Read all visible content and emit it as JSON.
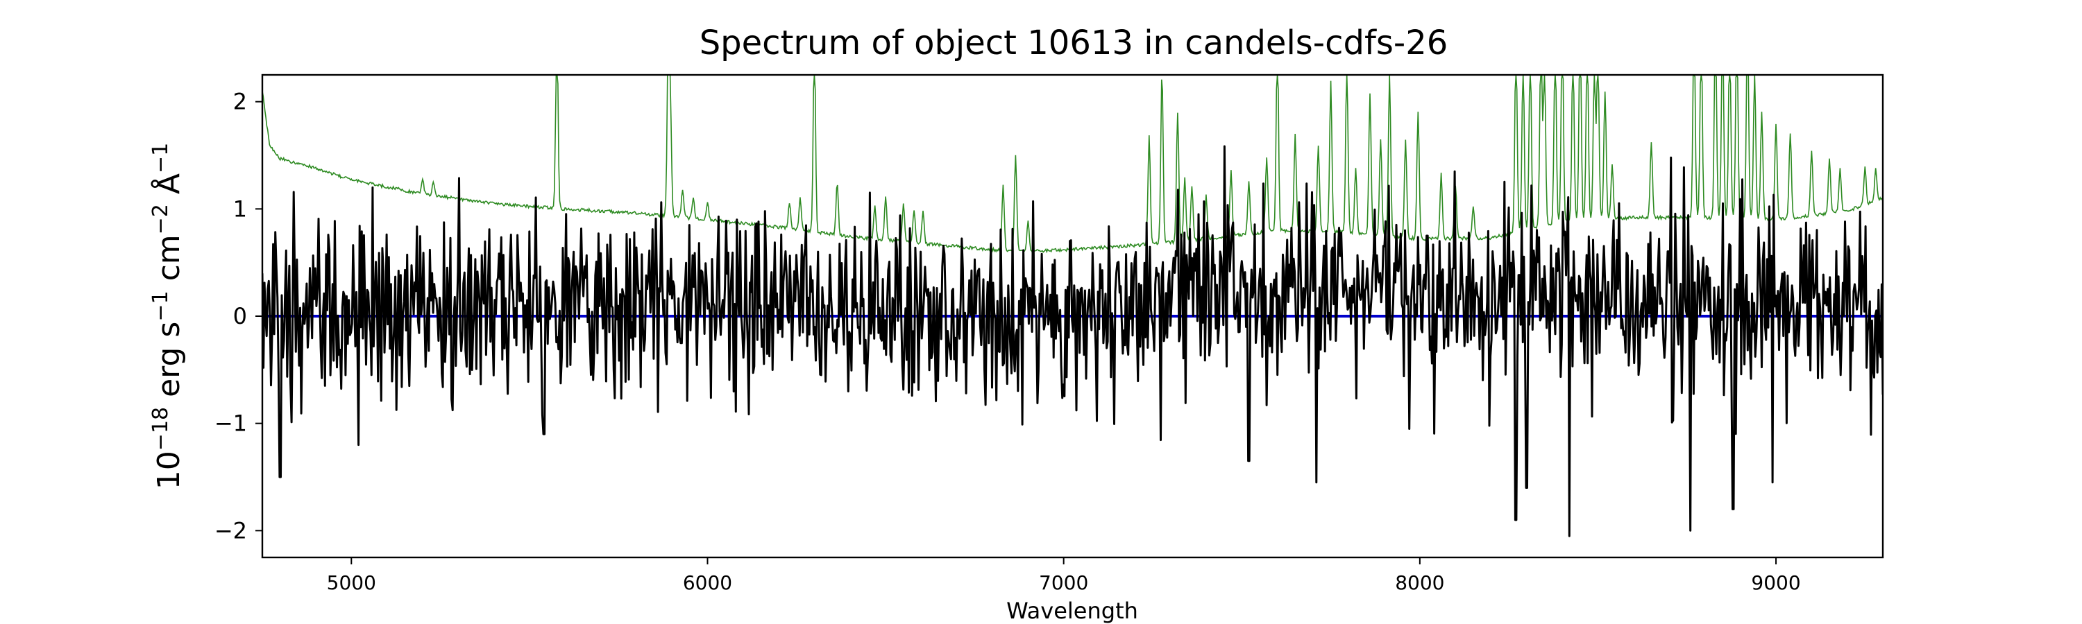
{
  "chart_data": {
    "type": "line",
    "title": "Spectrum of object 10613 in candels-cdfs-26",
    "xlabel": "Wavelength",
    "ylabel_parts": {
      "base": "10",
      "exp": "−18",
      "erg": " erg s",
      "s_exp": "−1",
      "cm": " cm",
      "cm_exp": "−2",
      "ang": " Å",
      "ang_exp": "−1"
    },
    "xlim": [
      4750,
      9300
    ],
    "ylim": [
      -2.25,
      2.25
    ],
    "xticks": [
      5000,
      6000,
      7000,
      8000,
      9000
    ],
    "xtick_labels": [
      "5000",
      "6000",
      "7000",
      "8000",
      "9000"
    ],
    "yticks": [
      -2,
      -1,
      0,
      1,
      2
    ],
    "ytick_labels": [
      "−2",
      "−1",
      "0",
      "1",
      "2"
    ],
    "grid": false,
    "colors": {
      "flux": "#000000",
      "error": "#2e8b22",
      "model": "#0000cc"
    },
    "error_series": {
      "continuum_anchors": [
        [
          4750,
          2.1
        ],
        [
          4770,
          1.6
        ],
        [
          4800,
          1.47
        ],
        [
          4900,
          1.38
        ],
        [
          5000,
          1.27
        ],
        [
          5200,
          1.14
        ],
        [
          5400,
          1.05
        ],
        [
          5600,
          1.0
        ],
        [
          5800,
          0.96
        ],
        [
          6000,
          0.9
        ],
        [
          6200,
          0.83
        ],
        [
          6400,
          0.74
        ],
        [
          6600,
          0.68
        ],
        [
          6800,
          0.62
        ],
        [
          6900,
          0.6
        ],
        [
          7000,
          0.62
        ],
        [
          7200,
          0.66
        ],
        [
          7400,
          0.72
        ],
        [
          7600,
          0.8
        ],
        [
          7800,
          0.78
        ],
        [
          8000,
          0.72
        ],
        [
          8200,
          0.73
        ],
        [
          8400,
          0.88
        ],
        [
          8600,
          0.92
        ],
        [
          8800,
          0.92
        ],
        [
          9000,
          0.9
        ],
        [
          9200,
          0.98
        ],
        [
          9300,
          1.1
        ]
      ],
      "sky_lines": [
        [
          5200,
          0.15
        ],
        [
          5230,
          0.12
        ],
        [
          5577,
          1.8
        ],
        [
          5890,
          1.8
        ],
        [
          5896,
          0.9
        ],
        [
          5930,
          0.25
        ],
        [
          5960,
          0.2
        ],
        [
          6000,
          0.15
        ],
        [
          6230,
          0.25
        ],
        [
          6260,
          0.3
        ],
        [
          6300,
          1.8
        ],
        [
          6364,
          0.5
        ],
        [
          6470,
          0.3
        ],
        [
          6500,
          0.4
        ],
        [
          6550,
          0.35
        ],
        [
          6580,
          0.3
        ],
        [
          6605,
          0.3
        ],
        [
          6830,
          0.6
        ],
        [
          6865,
          0.9
        ],
        [
          6900,
          0.3
        ],
        [
          7240,
          1.0
        ],
        [
          7276,
          1.6
        ],
        [
          7320,
          1.2
        ],
        [
          7340,
          0.6
        ],
        [
          7360,
          0.5
        ],
        [
          7400,
          0.4
        ],
        [
          7470,
          0.6
        ],
        [
          7520,
          0.5
        ],
        [
          7570,
          0.7
        ],
        [
          7600,
          1.8
        ],
        [
          7650,
          0.9
        ],
        [
          7715,
          0.8
        ],
        [
          7750,
          1.4
        ],
        [
          7795,
          1.6
        ],
        [
          7820,
          0.6
        ],
        [
          7860,
          1.3
        ],
        [
          7890,
          0.9
        ],
        [
          7915,
          1.5
        ],
        [
          7960,
          0.9
        ],
        [
          7995,
          1.2
        ],
        [
          8060,
          0.6
        ],
        [
          8100,
          0.5
        ],
        [
          8150,
          0.3
        ],
        [
          8270,
          1.8
        ],
        [
          8290,
          1.6
        ],
        [
          8310,
          1.7
        ],
        [
          8340,
          1.8
        ],
        [
          8350,
          1.5
        ],
        [
          8380,
          1.7
        ],
        [
          8400,
          1.8
        ],
        [
          8430,
          1.6
        ],
        [
          8450,
          1.8
        ],
        [
          8470,
          1.7
        ],
        [
          8490,
          1.4
        ],
        [
          8500,
          1.6
        ],
        [
          8520,
          1.2
        ],
        [
          8540,
          0.5
        ],
        [
          8650,
          0.7
        ],
        [
          8770,
          1.8
        ],
        [
          8790,
          1.7
        ],
        [
          8830,
          1.8
        ],
        [
          8850,
          1.8
        ],
        [
          8870,
          1.7
        ],
        [
          8890,
          1.8
        ],
        [
          8920,
          1.8
        ],
        [
          8940,
          1.4
        ],
        [
          8960,
          1.0
        ],
        [
          9000,
          0.9
        ],
        [
          9040,
          0.8
        ],
        [
          9100,
          0.6
        ],
        [
          9150,
          0.5
        ],
        [
          9180,
          0.4
        ],
        [
          9250,
          0.35
        ],
        [
          9280,
          0.3
        ]
      ]
    },
    "flux_series": {
      "n_points": 1500,
      "mean_anchors": [
        [
          4750,
          0.05
        ],
        [
          5200,
          0.12
        ],
        [
          5600,
          0.1
        ],
        [
          6000,
          0.12
        ],
        [
          6500,
          0.02
        ],
        [
          7000,
          -0.02
        ],
        [
          7400,
          0.18
        ],
        [
          7800,
          0.22
        ],
        [
          8200,
          0.18
        ],
        [
          8600,
          0.22
        ],
        [
          9000,
          0.05
        ],
        [
          9300,
          0.0
        ]
      ],
      "notable_dips": [
        [
          4800,
          -1.5
        ],
        [
          5020,
          -1.2
        ],
        [
          5540,
          -1.1
        ],
        [
          7520,
          -1.35
        ],
        [
          7710,
          -1.55
        ],
        [
          8270,
          -1.9
        ],
        [
          8300,
          -1.6
        ],
        [
          8420,
          -2.05
        ],
        [
          8760,
          -2.0
        ],
        [
          8880,
          -1.8
        ],
        [
          8990,
          -1.55
        ]
      ]
    },
    "model_series": {
      "x": [
        4750,
        9300
      ],
      "y": [
        0.0,
        0.0
      ]
    }
  }
}
